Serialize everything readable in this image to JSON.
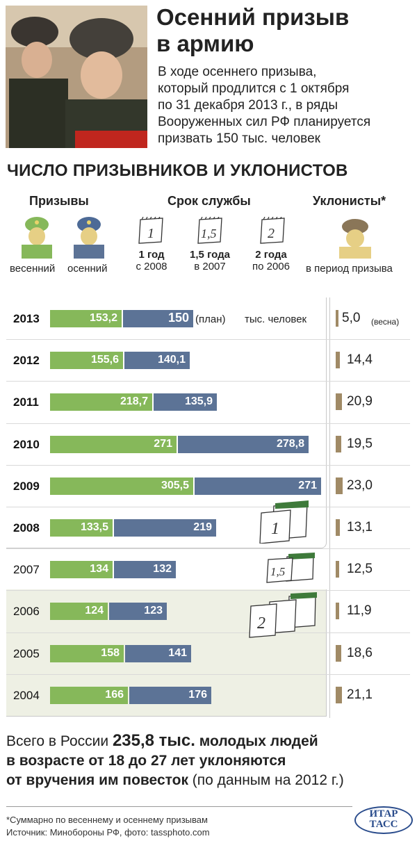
{
  "header": {
    "title_line1": "Осенний призыв",
    "title_line2": "в армию",
    "lead_lines": [
      "В ходе осеннего призыва,",
      "который продлится с 1 октября",
      "по 31 декабря 2013 г., в ряды",
      "Вооруженных сил РФ планируется",
      "призвать 150 тыс. человек"
    ]
  },
  "section_title": "ЧИСЛО ПРИЗЫВНИКОВ И УКЛОНИСТОВ",
  "legend": {
    "drafts_header": "Призывы",
    "spring": "весенний",
    "autumn": "осенний",
    "service_header": "Срок службы",
    "terms": [
      {
        "icon": "1",
        "line1": "1 год",
        "line2": "с 2008"
      },
      {
        "icon": "1,5",
        "line1": "1,5 года",
        "line2": "в 2007"
      },
      {
        "icon": "2",
        "line1": "2 года",
        "line2": "по 2006"
      }
    ],
    "dodgers_header": "Уклонисты*",
    "dodgers_caption": "в период призыва",
    "colors": {
      "spring": "#86b85a",
      "autumn": "#5c7396",
      "dodgers": "#a08a66"
    }
  },
  "chart_data": {
    "type": "bar",
    "stacked": true,
    "orientation": "horizontal",
    "categories": [
      "2013",
      "2012",
      "2011",
      "2010",
      "2009",
      "2008",
      "2007",
      "2006",
      "2005",
      "2004"
    ],
    "series": [
      {
        "name": "весенний",
        "values": [
          153.2,
          155.6,
          218.7,
          271,
          305.5,
          133.5,
          134,
          124,
          158,
          166
        ]
      },
      {
        "name": "осенний",
        "values": [
          150,
          140.1,
          135.9,
          278.8,
          271,
          219,
          132,
          123,
          141,
          176
        ]
      },
      {
        "name": "Уклонисты*",
        "values": [
          5.0,
          14.4,
          20.9,
          19.5,
          23.0,
          13.1,
          12.5,
          11.9,
          18.6,
          21.1
        ]
      }
    ],
    "labels": {
      "spring": [
        "153,2",
        "155,6",
        "218,7",
        "271",
        "305,5",
        "133,5",
        "134",
        "124",
        "158",
        "166"
      ],
      "autumn": [
        "150",
        "140,1",
        "135,9",
        "278,8",
        "271",
        "219",
        "132",
        "123",
        "141",
        "176"
      ],
      "dodgers": [
        "5,0",
        "14,4",
        "20,9",
        "19,5",
        "23,0",
        "13,1",
        "12,5",
        "11,9",
        "18,6",
        "21,1"
      ]
    },
    "bold_years": [
      true,
      true,
      true,
      true,
      true,
      true,
      false,
      false,
      false,
      false
    ],
    "plan_note": "(план)",
    "unit": "тыс. человек",
    "spring_note": "(весна)",
    "service_markers": [
      "1",
      "1,5",
      "2"
    ]
  },
  "bottom_text": {
    "part1": "Всего в России ",
    "number": "235,8 тыс.",
    "part2": " молодых людей",
    "line2": "в возрасте от 18 до 27 лет уклоняются",
    "line3_bold": "от вручения им повесток",
    "line3_rest": " (по данным на 2012 г.)"
  },
  "footnote": "*Суммарно по весеннему и осеннему призывам",
  "source": "Источник: Минобороны РФ, фото: tassphoto.com",
  "logo": {
    "line1": "ИТАР",
    "line2": "ТАСС"
  }
}
